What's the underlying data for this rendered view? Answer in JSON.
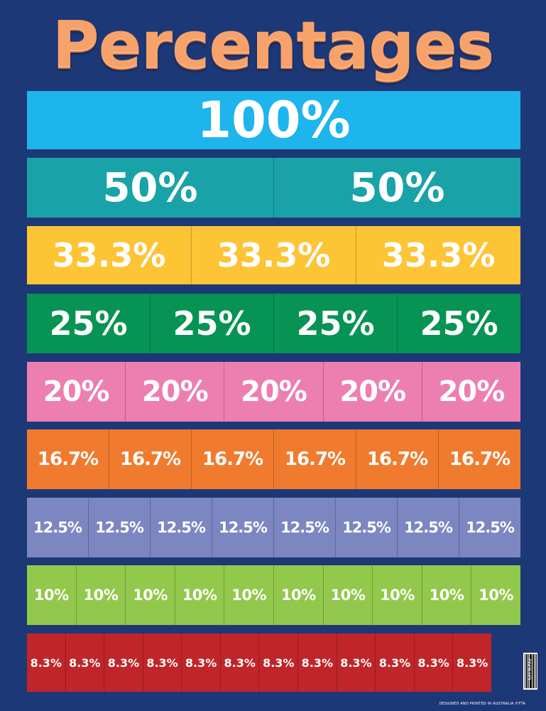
{
  "title": "Percentages",
  "rows": [
    {
      "label": "100%",
      "count": 1,
      "color": "#1eb4ec"
    },
    {
      "label": "50%",
      "count": 2,
      "color": "#19a3a8"
    },
    {
      "label": "33.3%",
      "count": 3,
      "color": "#fdc436"
    },
    {
      "label": "25%",
      "count": 4,
      "color": "#079353"
    },
    {
      "label": "20%",
      "count": 5,
      "color": "#ec7fb0"
    },
    {
      "label": "16.7%",
      "count": 6,
      "color": "#f07b2e"
    },
    {
      "label": "12.5%",
      "count": 8,
      "color": "#7c86c0"
    },
    {
      "label": "10%",
      "count": 10,
      "color": "#92c84b"
    },
    {
      "label": "8.3%",
      "count": 12,
      "color": "#c02529"
    }
  ],
  "product_code": "CH 8392",
  "footer_text": "DESIGNED AND PRINTED IN AUSTRALIA ©FTA",
  "background_color": "#1d3877",
  "title_color": "#f7a26a"
}
